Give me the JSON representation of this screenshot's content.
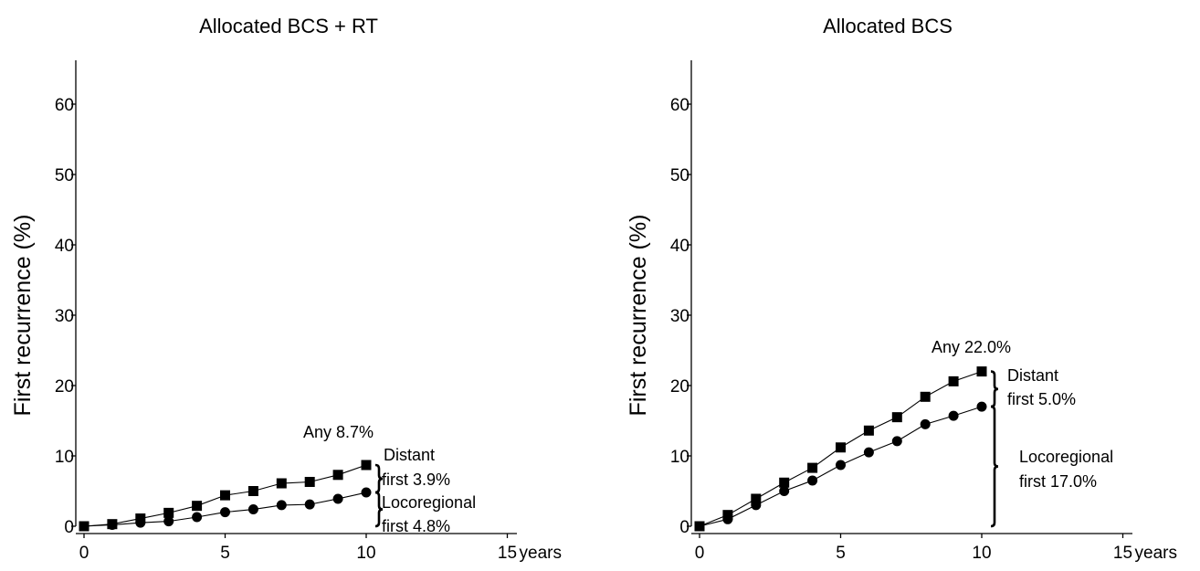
{
  "chart_data": [
    {
      "type": "line",
      "title": "Allocated BCS + RT",
      "ylabel": "First recurrence (%)",
      "xlabel": "",
      "x_unit_label": "years",
      "xlim": [
        0,
        15
      ],
      "ylim": [
        0,
        65
      ],
      "x_ticks": [
        0,
        5,
        10,
        15
      ],
      "y_ticks": [
        0,
        10,
        20,
        30,
        40,
        50,
        60
      ],
      "grid": false,
      "x": [
        0,
        1,
        2,
        3,
        4,
        5,
        6,
        7,
        8,
        9,
        10
      ],
      "series": [
        {
          "marker": "square",
          "values": [
            0,
            0.3,
            1.1,
            1.9,
            2.9,
            4.4,
            5.0,
            6.1,
            6.3,
            7.3,
            8.7
          ]
        },
        {
          "marker": "circle",
          "values": [
            0,
            0.2,
            0.5,
            0.7,
            1.3,
            2.0,
            2.4,
            3.0,
            3.1,
            3.9,
            4.8
          ]
        }
      ],
      "annotations": {
        "any": "Any  8.7%",
        "distant_line1": "Distant",
        "distant_line2": "first  3.9%",
        "loco_line1": "Locoregional",
        "loco_line2": "first  4.8%"
      },
      "braces": [
        {
          "from": 4.8,
          "to": 8.7
        },
        {
          "from": 0,
          "to": 4.8
        }
      ]
    },
    {
      "type": "line",
      "title": "Allocated BCS",
      "ylabel": "First recurrence (%)",
      "xlabel": "",
      "x_unit_label": "years",
      "xlim": [
        0,
        15
      ],
      "ylim": [
        0,
        65
      ],
      "x_ticks": [
        0,
        5,
        10,
        15
      ],
      "y_ticks": [
        0,
        10,
        20,
        30,
        40,
        50,
        60
      ],
      "grid": false,
      "x": [
        0,
        1,
        2,
        3,
        4,
        5,
        6,
        7,
        8,
        9,
        10
      ],
      "series": [
        {
          "marker": "square",
          "values": [
            0,
            1.6,
            3.9,
            6.2,
            8.3,
            11.2,
            13.6,
            15.5,
            18.4,
            20.6,
            22.0
          ]
        },
        {
          "marker": "circle",
          "values": [
            0,
            1.0,
            3.0,
            5.0,
            6.5,
            8.7,
            10.5,
            12.1,
            14.5,
            15.7,
            17.0
          ]
        }
      ],
      "annotations": {
        "any": "Any 22.0%",
        "distant_line1": "Distant",
        "distant_line2": "first  5.0%",
        "loco_line1": "Locoregional",
        "loco_line2": "first 17.0%"
      },
      "braces": [
        {
          "from": 17.0,
          "to": 22.0
        },
        {
          "from": 0,
          "to": 17.0
        }
      ]
    }
  ]
}
